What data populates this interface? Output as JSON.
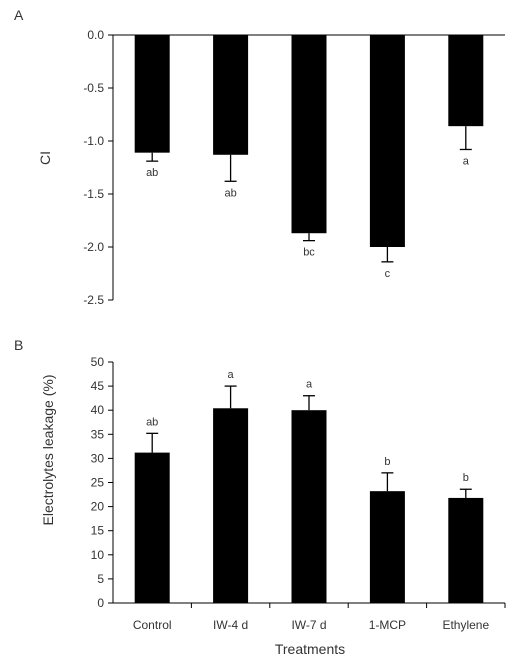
{
  "chart_data": [
    {
      "panel": "A",
      "type": "bar",
      "categories": [
        "Control",
        "IW-4 d",
        "IW-7 d",
        "1-MCP",
        "Ethylene"
      ],
      "values": [
        -1.11,
        -1.13,
        -1.87,
        -2.0,
        -0.86
      ],
      "errors": [
        0.08,
        0.25,
        0.07,
        0.14,
        0.22
      ],
      "significance": [
        "ab",
        "ab",
        "bc",
        "c",
        "a"
      ],
      "ylabel": "CI",
      "ylim": [
        -2.5,
        0.0
      ],
      "yticks": [
        "0.0",
        "-0.5",
        "-1.0",
        "-1.5",
        "-2.0",
        "-2.5"
      ],
      "show_category_labels": false,
      "grid": false
    },
    {
      "panel": "B",
      "type": "bar",
      "categories": [
        "Control",
        "IW-4 d",
        "IW-7 d",
        "1-MCP",
        "Ethylene"
      ],
      "values": [
        31.2,
        40.4,
        40.0,
        23.2,
        21.8
      ],
      "errors": [
        4.0,
        4.6,
        3.0,
        3.8,
        1.8
      ],
      "significance": [
        "ab",
        "a",
        "a",
        "b",
        "b"
      ],
      "xlabel": "Treatments",
      "ylabel": "Electrolytes leakage (%)",
      "ylim": [
        0,
        50
      ],
      "yticks": [
        "0",
        "5",
        "10",
        "15",
        "20",
        "25",
        "30",
        "35",
        "40",
        "45",
        "50"
      ],
      "show_category_labels": true,
      "grid": false
    }
  ]
}
